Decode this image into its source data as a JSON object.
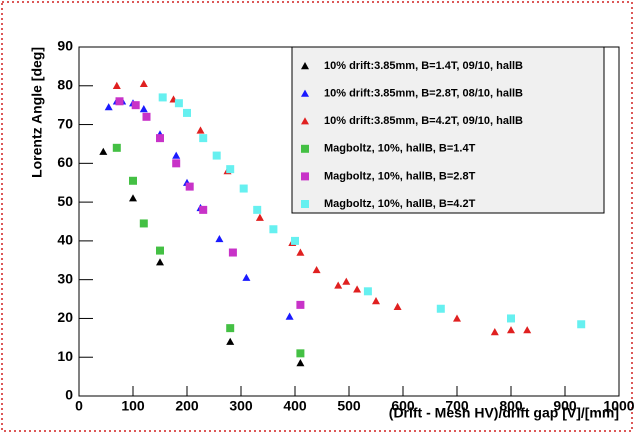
{
  "chart_data": {
    "type": "scatter",
    "x_label": "(Drift - Mesh HV)/drift gap [V]/[mm]",
    "y_label": "Lorentz Angle [deg]",
    "xlim": [
      0,
      1000
    ],
    "ylim": [
      0,
      90
    ],
    "xticks": [
      0,
      100,
      200,
      300,
      400,
      500,
      600,
      700,
      800,
      900,
      1000
    ],
    "yticks": [
      0,
      10,
      20,
      30,
      40,
      50,
      60,
      70,
      80,
      90
    ],
    "legend": "top-right",
    "series": [
      {
        "name": "10% drift:3.85mm, B=1.4T, 09/10, hallB",
        "color": "#000000",
        "marker": "triangle",
        "x": [
          45,
          100,
          150,
          280,
          410
        ],
        "values": [
          63,
          51,
          34.5,
          14,
          8.5
        ]
      },
      {
        "name": "10% drift:3.85mm, B=2.8T, 08/10, hallB",
        "color": "#1a1aff",
        "marker": "triangle",
        "x": [
          55,
          70,
          80,
          100,
          120,
          150,
          180,
          200,
          225,
          260,
          310,
          390
        ],
        "values": [
          74.5,
          76,
          76,
          75.5,
          74,
          67.5,
          62,
          55,
          48.5,
          40.5,
          30.5,
          20.5
        ]
      },
      {
        "name": "10% drift:3.85mm, B=4.2T, 09/10, hallB",
        "color": "#e02020",
        "marker": "triangle",
        "x": [
          70,
          120,
          175,
          225,
          275,
          335,
          395,
          410,
          440,
          480,
          495,
          515,
          550,
          590,
          700,
          770,
          800,
          830
        ],
        "values": [
          80,
          80.5,
          76.5,
          68.5,
          58,
          46,
          39.5,
          37,
          32.5,
          28.5,
          29.5,
          27.5,
          24.5,
          23,
          20,
          16.5,
          17,
          17
        ]
      },
      {
        "name": "Magboltz, 10%, hallB, B=1.4T",
        "color": "#44c044",
        "marker": "square",
        "x": [
          70,
          100,
          120,
          150,
          280,
          410
        ],
        "values": [
          64,
          55.5,
          44.5,
          37.5,
          17.5,
          11
        ]
      },
      {
        "name": "Magboltz, 10%, hallB, B=2.8T",
        "color": "#c832c8",
        "marker": "square",
        "x": [
          75,
          105,
          125,
          150,
          180,
          205,
          230,
          285,
          410
        ],
        "values": [
          76,
          75,
          72,
          66.5,
          60,
          54,
          48,
          37,
          23.5
        ]
      },
      {
        "name": "Magboltz, 10%, hallB, B=4.2T",
        "color": "#66f0f0",
        "marker": "square",
        "x": [
          155,
          185,
          200,
          230,
          255,
          280,
          305,
          330,
          360,
          400,
          535,
          670,
          800,
          930
        ],
        "values": [
          77,
          75.5,
          73,
          66.5,
          62,
          58.5,
          53.5,
          48,
          43,
          40,
          27,
          22.5,
          20,
          18.5
        ]
      }
    ]
  }
}
